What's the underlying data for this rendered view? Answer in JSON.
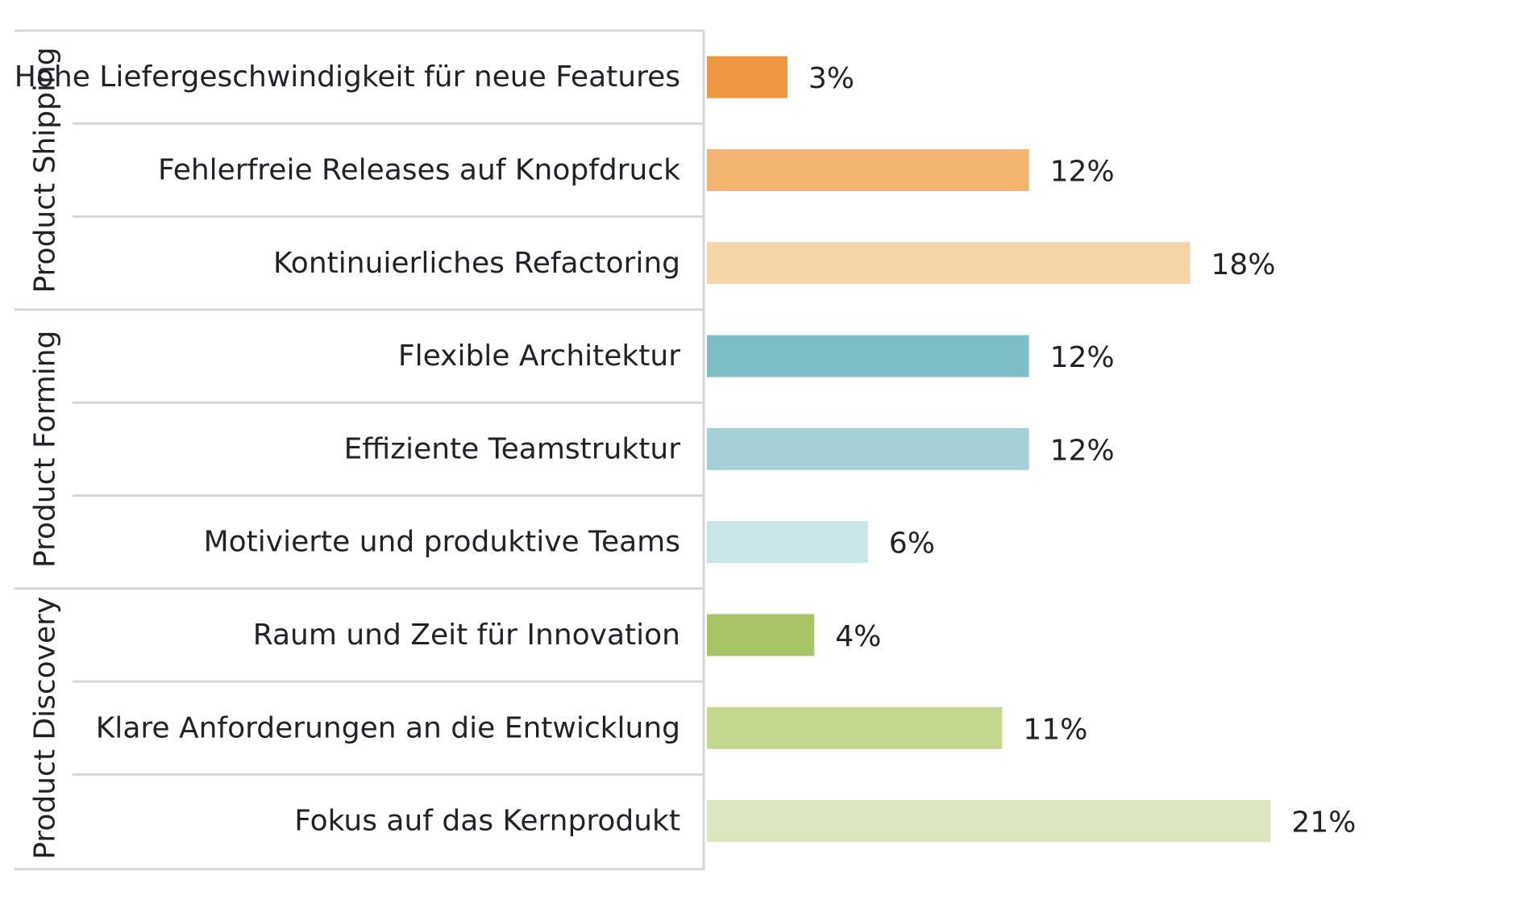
{
  "chart_data": {
    "type": "bar",
    "orientation": "horizontal",
    "title": "",
    "xlabel": "",
    "ylabel": "",
    "xlim": [
      0,
      24
    ],
    "grid": false,
    "legend": "none",
    "value_suffix": "%",
    "groups": [
      {
        "name": "Product Shipping",
        "items": [
          {
            "label": "Hohe Liefergeschwindigkeit für neue Features",
            "value": 3,
            "value_label": "3%",
            "color": "#ee9641"
          },
          {
            "label": "Fehlerfreie Releases auf Knopfdruck",
            "value": 12,
            "value_label": "12%",
            "color": "#f3b471"
          },
          {
            "label": "Kontinuierliches Refactoring",
            "value": 18,
            "value_label": "18%",
            "color": "#f6d4aa"
          }
        ]
      },
      {
        "name": "Product Forming",
        "items": [
          {
            "label": "Flexible Architektur",
            "value": 12,
            "value_label": "12%",
            "color": "#7dbdc4"
          },
          {
            "label": "Effiziente Teamstruktur",
            "value": 12,
            "value_label": "12%",
            "color": "#a3d1d5"
          },
          {
            "label": "Motivierte und produktive Teams",
            "value": 6,
            "value_label": "6%",
            "color": "#c8e5e7"
          }
        ]
      },
      {
        "name": "Product Discovery",
        "items": [
          {
            "label": "Raum und Zeit für Innovation",
            "value": 4,
            "value_label": "4%",
            "color": "#a9c466"
          },
          {
            "label": "Klare Anforderungen an die Entwicklung",
            "value": 11,
            "value_label": "11%",
            "color": "#c4d78f"
          },
          {
            "label": "Fokus auf das Kernprodukt",
            "value": 21,
            "value_label": "21%",
            "color": "#dbe7bf"
          }
        ]
      }
    ]
  }
}
